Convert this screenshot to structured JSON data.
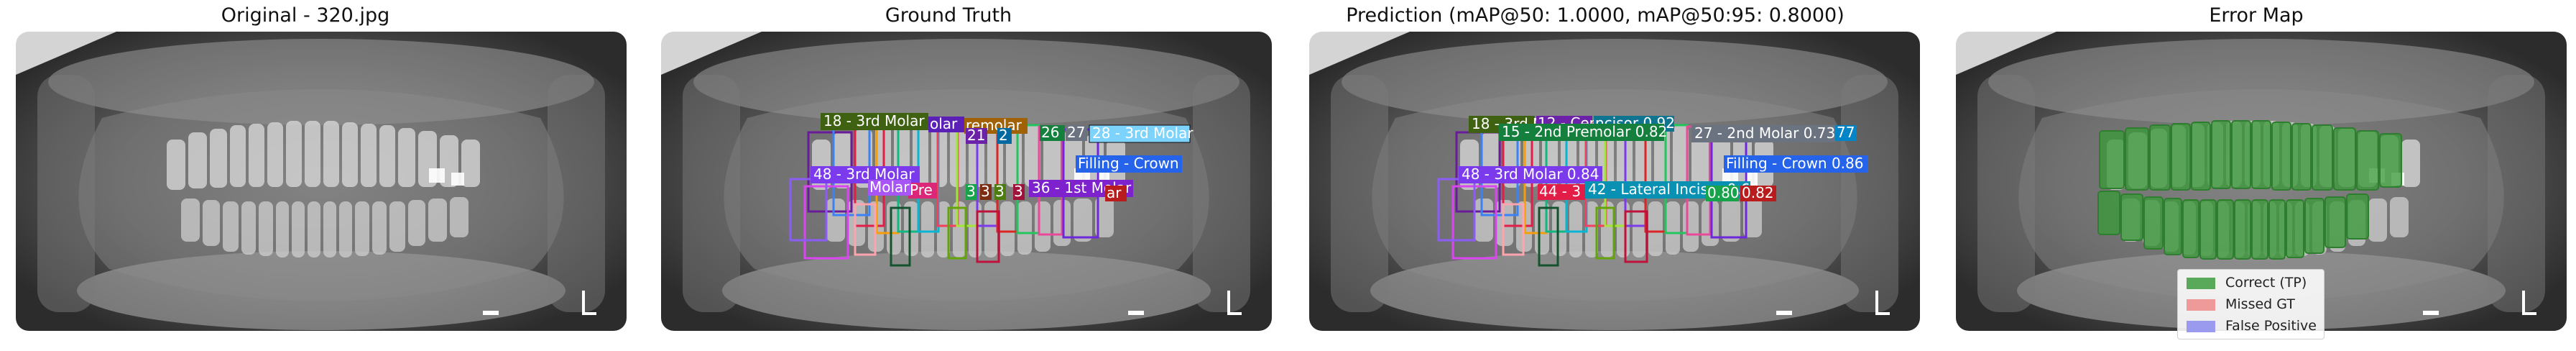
{
  "titles": {
    "original": "Original - 320.jpg",
    "ground_truth": "Ground Truth",
    "prediction": "Prediction (mAP@50: 1.0000, mAP@50:95: 0.8000)",
    "error_map": "Error Map"
  },
  "ground_truth_labels": [
    "18 - 3rd Molar",
    "olar",
    "remolar",
    "26",
    "28 - 3rd Molar",
    "27",
    "21",
    "2",
    "Filling - Crown",
    "48 - 3rd Molar",
    "36 - 1st Molar",
    "ar",
    "Pre",
    "Molar",
    "3",
    "3",
    "3",
    "3"
  ],
  "prediction_labels": [
    "18 - 3rd M",
    "12 - Cen",
    "ncisor 0.92",
    "15 - 2nd Premolar 0.82",
    "27 - 2nd Molar 0.73",
    "77",
    "Filling - Crown 0.86",
    "48 - 3rd Molar 0.84",
    "44 - 3",
    "42 - Lateral Incisor 0.69",
    "0.80",
    "0.82"
  ],
  "legend": {
    "items": [
      {
        "label": "Correct (TP)",
        "color": "#5aa95a"
      },
      {
        "label": "Missed GT",
        "color": "#ee9a9a"
      },
      {
        "label": "False Positive",
        "color": "#9a9aee"
      }
    ]
  },
  "colors": {
    "tooth_fill": "#3a9a3a",
    "background": "#ffffff"
  }
}
